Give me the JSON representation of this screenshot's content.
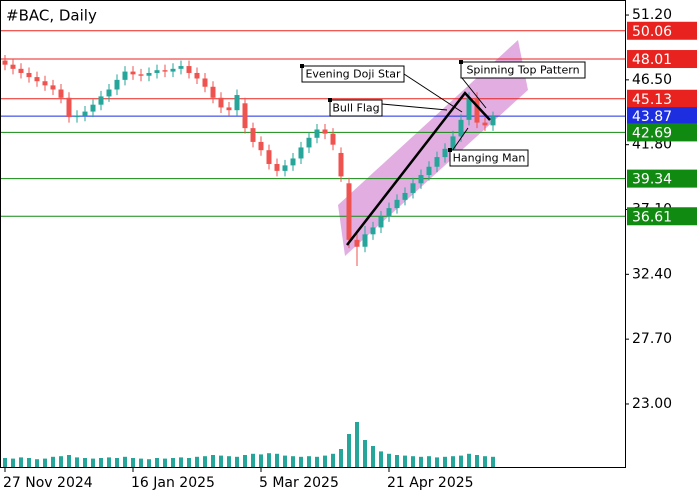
{
  "chart_data": {
    "type": "candlestick",
    "title": "#BAC, Daily",
    "up_color": "#26a69a",
    "down_color": "#ef5350",
    "volume_color": "#26a69a",
    "xlim": [
      -0.625,
      77.5
    ],
    "xticks": [
      {
        "value": 0,
        "label": "27 Nov 2024"
      },
      {
        "value": 16,
        "label": "16 Jan 2025"
      },
      {
        "value": 32,
        "label": "5 Mar 2025"
      },
      {
        "value": 48,
        "label": "21 Apr 2025"
      }
    ],
    "ylim": [
      18.43,
      52.29
    ],
    "yticks": [
      {
        "value": 51.2,
        "label": "51.20"
      },
      {
        "value": 46.5,
        "label": "46.50"
      },
      {
        "value": 41.8,
        "label": "41.80"
      },
      {
        "value": 37.1,
        "label": "37.10"
      },
      {
        "value": 32.4,
        "label": "32.40"
      },
      {
        "value": 27.7,
        "label": "27.70"
      },
      {
        "value": 23,
        "label": "23.00"
      }
    ],
    "open": [
      47.9,
      47.6,
      47.3,
      47.0,
      46.7,
      46.4,
      46.1,
      45.8,
      45.2,
      43.8,
      43.9,
      44.2,
      44.7,
      45.3,
      45.8,
      46.5,
      47.1,
      46.9,
      46.8,
      47.0,
      47.2,
      47.1,
      47.3,
      47.5,
      47.0,
      46.6,
      46.0,
      45.2,
      44.5,
      44.3,
      44.8,
      43.0,
      42.0,
      41.4,
      40.4,
      39.9,
      40.3,
      40.8,
      41.6,
      42.3,
      42.9,
      42.6,
      41.2,
      39.0,
      34.9,
      34.4,
      35.3,
      35.8,
      36.6,
      37.2,
      37.8,
      38.3,
      39.0,
      39.6,
      40.2,
      40.9,
      41.5,
      42.4,
      43.6,
      45.2,
      43.4,
      43.2
    ],
    "high": [
      48.3,
      48.0,
      47.7,
      47.4,
      47.1,
      46.8,
      46.5,
      46.2,
      45.6,
      44.3,
      44.6,
      45.1,
      45.7,
      46.2,
      46.9,
      47.5,
      47.5,
      47.3,
      47.4,
      47.6,
      47.6,
      47.7,
      47.9,
      47.9,
      47.4,
      47.0,
      46.4,
      45.6,
      44.9,
      45.8,
      45.2,
      43.4,
      42.4,
      41.8,
      40.8,
      40.7,
      41.2,
      42.0,
      42.7,
      43.3,
      43.3,
      43.0,
      41.6,
      39.4,
      35.6,
      35.9,
      36.2,
      37.0,
      37.6,
      38.2,
      38.7,
      39.4,
      40.0,
      40.6,
      41.3,
      41.9,
      42.8,
      44.0,
      45.6,
      45.6,
      43.8,
      44.2
    ],
    "low": [
      47.2,
      46.9,
      46.6,
      46.3,
      46.0,
      45.7,
      45.4,
      44.8,
      43.4,
      43.4,
      43.5,
      43.8,
      44.3,
      44.9,
      45.4,
      46.1,
      46.5,
      46.4,
      46.4,
      46.6,
      46.7,
      46.7,
      46.9,
      46.6,
      46.2,
      45.6,
      44.8,
      44.1,
      43.9,
      43.9,
      42.6,
      41.6,
      41.0,
      40.0,
      39.5,
      39.5,
      39.9,
      40.4,
      41.2,
      41.9,
      42.2,
      41.4,
      39.1,
      34.3,
      33.0,
      34.0,
      34.9,
      35.4,
      36.2,
      36.8,
      37.4,
      37.9,
      38.6,
      39.2,
      39.8,
      40.5,
      41.1,
      42.0,
      43.2,
      43.0,
      42.8,
      42.8
    ],
    "close": [
      47.6,
      47.3,
      47.0,
      46.7,
      46.4,
      46.1,
      45.8,
      45.2,
      43.8,
      43.9,
      44.2,
      44.7,
      45.3,
      45.8,
      46.5,
      47.1,
      46.9,
      46.8,
      47.0,
      47.2,
      47.1,
      47.3,
      47.5,
      47.0,
      46.6,
      46.0,
      45.2,
      44.5,
      44.3,
      45.4,
      43.0,
      42.0,
      41.4,
      40.4,
      39.9,
      40.3,
      40.8,
      41.6,
      42.3,
      42.9,
      42.6,
      41.8,
      39.5,
      34.9,
      34.4,
      35.3,
      35.8,
      36.6,
      37.2,
      37.8,
      38.3,
      39.0,
      39.6,
      40.2,
      40.9,
      41.5,
      42.4,
      43.6,
      45.2,
      43.4,
      43.2,
      43.87
    ],
    "volume": [
      30,
      28,
      32,
      30,
      26,
      28,
      34,
      36,
      40,
      32,
      30,
      28,
      30,
      32,
      30,
      34,
      30,
      28,
      26,
      30,
      28,
      30,
      32,
      30,
      34,
      36,
      40,
      38,
      36,
      34,
      40,
      44,
      42,
      46,
      44,
      38,
      36,
      34,
      36,
      34,
      38,
      44,
      60,
      110,
      150,
      90,
      70,
      52,
      44,
      40,
      38,
      36,
      34,
      36,
      32,
      34,
      36,
      38,
      44,
      40,
      36,
      34
    ],
    "levels": [
      {
        "value": 50.06,
        "color": "#e8231f"
      },
      {
        "value": 48.01,
        "color": "#e8231f"
      },
      {
        "value": 45.13,
        "color": "#e8231f"
      },
      {
        "value": 43.87,
        "color": "#1c2ee0"
      },
      {
        "value": 42.69,
        "color": "#118a11"
      },
      {
        "value": 39.34,
        "color": "#118a11"
      },
      {
        "value": 36.61,
        "color": "#118a11"
      }
    ],
    "annotations": [
      "Evening Doji Star",
      "Spinning Top Pattern",
      "Bull Flag",
      "Hanging Man"
    ]
  }
}
